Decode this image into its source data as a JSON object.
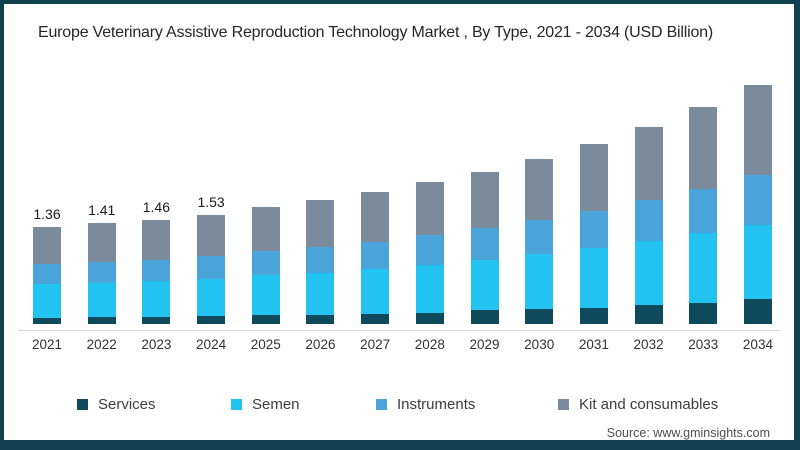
{
  "title": "Europe Veterinary Assistive Reproduction Technology  Market , By Type, 2021 - 2034 (USD Billion)",
  "source": "Source: www.gminsights.com",
  "colors": {
    "frame": "#11414f",
    "axis_line": "#d9d9d9",
    "services": "#0e4a5c",
    "semen": "#22c3f0",
    "instruments": "#4aa3d9",
    "kit_and_consumables": "#7c8b9b"
  },
  "legend": [
    {
      "label": "Services",
      "color": "#0e4a5c"
    },
    {
      "label": "Semen",
      "color": "#22c3f0"
    },
    {
      "label": "Instruments",
      "color": "#4aa3d9"
    },
    {
      "label": "Kit and consumables",
      "color": "#7c8b9b"
    }
  ],
  "chart_data": {
    "type": "bar",
    "stacked": true,
    "title": "Europe Veterinary Assistive Reproduction Technology Market , By Type, 2021 - 2034 (USD Billion)",
    "units": "USD Billion",
    "xlabel": "",
    "ylabel": "",
    "ylim": [
      0,
      3.5
    ],
    "grid": false,
    "legend_position": "bottom",
    "categories": [
      "2021",
      "2022",
      "2023",
      "2024",
      "2025",
      "2026",
      "2027",
      "2028",
      "2029",
      "2030",
      "2031",
      "2032",
      "2033",
      "2034"
    ],
    "series": [
      {
        "name": "Services",
        "color": "#0e4a5c",
        "values": [
          0.09,
          0.1,
          0.1,
          0.11,
          0.12,
          0.13,
          0.14,
          0.16,
          0.19,
          0.21,
          0.23,
          0.26,
          0.3,
          0.35
        ]
      },
      {
        "name": "Semen",
        "color": "#22c3f0",
        "values": [
          0.47,
          0.48,
          0.5,
          0.52,
          0.56,
          0.59,
          0.63,
          0.67,
          0.71,
          0.77,
          0.83,
          0.9,
          0.97,
          1.04
        ]
      },
      {
        "name": "Instruments",
        "color": "#4aa3d9",
        "values": [
          0.28,
          0.29,
          0.3,
          0.32,
          0.34,
          0.36,
          0.38,
          0.41,
          0.44,
          0.47,
          0.52,
          0.57,
          0.62,
          0.69
        ]
      },
      {
        "name": "Kit and consumables",
        "color": "#7c8b9b",
        "values": [
          0.52,
          0.54,
          0.56,
          0.58,
          0.62,
          0.66,
          0.7,
          0.74,
          0.79,
          0.86,
          0.94,
          1.03,
          1.14,
          1.26
        ]
      }
    ],
    "totals": [
      1.36,
      1.41,
      1.46,
      1.53,
      1.64,
      1.74,
      1.85,
      1.98,
      2.13,
      2.31,
      2.52,
      2.76,
      3.03,
      3.34
    ],
    "data_labels": [
      "1.36",
      "1.41",
      "1.46",
      "1.53",
      "",
      "",
      "",
      "",
      "",
      "",
      "",
      "",
      "",
      ""
    ]
  },
  "legend_layout": {
    "lefts": [
      73,
      227,
      372,
      554
    ]
  }
}
